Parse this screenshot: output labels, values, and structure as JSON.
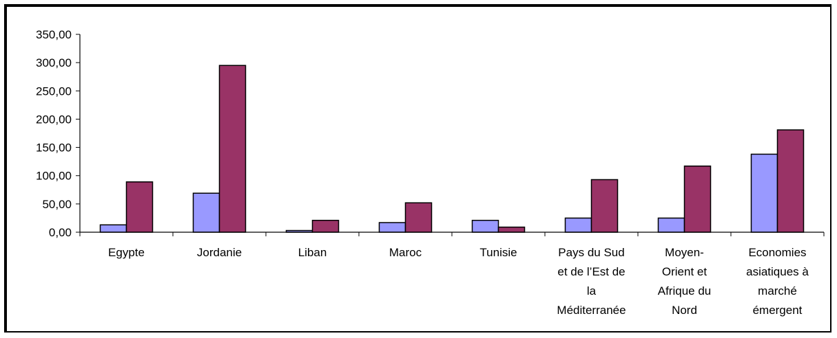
{
  "chart_data": {
    "type": "bar",
    "title": "",
    "xlabel": "",
    "ylabel": "",
    "ylim": [
      0,
      350
    ],
    "yticks": [
      "0,00",
      "50,00",
      "100,00",
      "150,00",
      "200,00",
      "250,00",
      "300,00",
      "350,00"
    ],
    "legend": "none",
    "grid": false,
    "categories": [
      [
        "Egypte"
      ],
      [
        "Jordanie"
      ],
      [
        "Liban"
      ],
      [
        "Maroc"
      ],
      [
        "Tunisie"
      ],
      [
        "Pays du Sud",
        "et de l’Est de",
        "la",
        "Méditerranée"
      ],
      [
        "Moyen-",
        "Orient et",
        "Afrique du",
        "Nord"
      ],
      [
        "Economies",
        "asiatiques à",
        "marché",
        "émergent"
      ]
    ],
    "series": [
      {
        "values": [
          13,
          69,
          3,
          17,
          21,
          25,
          25,
          138
        ],
        "color": "#9999ff"
      },
      {
        "values": [
          89,
          295,
          21,
          52,
          9,
          93,
          117,
          181
        ],
        "color": "#993366"
      }
    ]
  }
}
